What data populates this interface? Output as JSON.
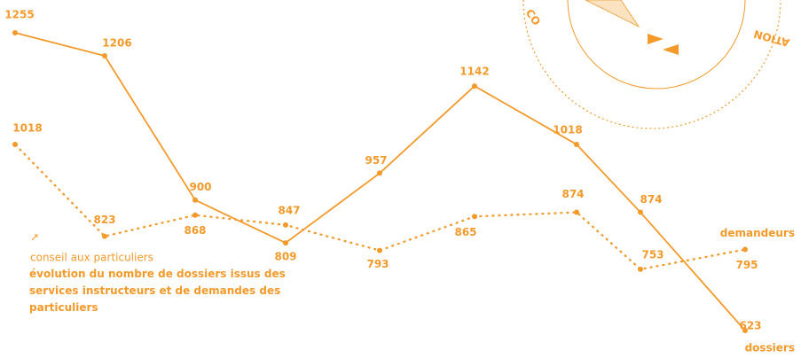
{
  "chart_data": {
    "type": "line",
    "categories": [
      null,
      null,
      null,
      null,
      null,
      null,
      null,
      null,
      null
    ],
    "series": [
      {
        "name": "dossiers",
        "color": "#f39a2b",
        "style": "solid",
        "values": [
          1255,
          1206,
          900,
          809,
          957,
          1142,
          1018,
          874,
          623
        ]
      },
      {
        "name": "demandeurs",
        "color": "#f39a2b",
        "style": "dotted",
        "values": [
          1018,
          823,
          868,
          847,
          793,
          865,
          874,
          753,
          795
        ]
      }
    ],
    "legend": {
      "subtitle": "conseil aux particuliers",
      "title": "évolution du nombre de dossiers issus des services instructeurs et de demandes des particuliers"
    },
    "decor": [
      "CO",
      "ATION"
    ]
  }
}
